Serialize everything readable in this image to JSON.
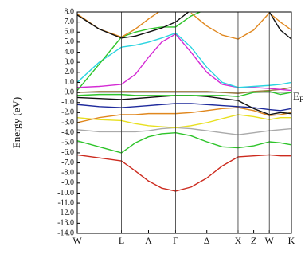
{
  "chart_data": {
    "type": "line",
    "ylabel": "Energy (eV)",
    "fermi_label": {
      "main": "E",
      "sub": "F"
    },
    "fermi_level": 0,
    "fermi_color": "#aaaaaa",
    "xlim": [
      0,
      3.427
    ],
    "ylim": [
      -14,
      8
    ],
    "xticks": [
      {
        "value": 0,
        "label": "W"
      },
      {
        "value": 0.707,
        "label": "L"
      },
      {
        "value": 1.14,
        "label": "Λ"
      },
      {
        "value": 1.573,
        "label": "Γ"
      },
      {
        "value": 2.073,
        "label": "Δ"
      },
      {
        "value": 2.573,
        "label": "X"
      },
      {
        "value": 2.823,
        "label": "Z"
      },
      {
        "value": 3.073,
        "label": "W"
      },
      {
        "value": 3.427,
        "label": "K"
      }
    ],
    "vlines": [
      0,
      0.707,
      1.573,
      2.573,
      3.073,
      3.427
    ],
    "yticks": [
      {
        "value": 8,
        "label": "8.0"
      },
      {
        "value": 7,
        "label": "7.0"
      },
      {
        "value": 6,
        "label": "6.0"
      },
      {
        "value": 5,
        "label": "5.0"
      },
      {
        "value": 4,
        "label": "4.0"
      },
      {
        "value": 3,
        "label": "3.0"
      },
      {
        "value": 2,
        "label": "2.0"
      },
      {
        "value": 1,
        "label": "1.0"
      },
      {
        "value": 0,
        "label": "0.0"
      },
      {
        "value": -1,
        "label": "-1.0"
      },
      {
        "value": -2,
        "label": "-2.0"
      },
      {
        "value": -3,
        "label": "-3.0"
      },
      {
        "value": -4,
        "label": "-4.0"
      },
      {
        "value": -5,
        "label": "-5.0"
      },
      {
        "value": -6,
        "label": "-6.0"
      },
      {
        "value": -7,
        "label": "-7.0"
      },
      {
        "value": -8,
        "label": "-8.0"
      },
      {
        "value": -9,
        "label": "-9.0"
      },
      {
        "value": -10,
        "label": "-10.0"
      },
      {
        "value": -11,
        "label": "-11.0"
      },
      {
        "value": -12,
        "label": "-12.0"
      },
      {
        "value": -13,
        "label": "-13.0"
      },
      {
        "value": -14,
        "label": "-14.0"
      }
    ],
    "x": [
      0,
      0.35,
      0.707,
      0.93,
      1.14,
      1.35,
      1.573,
      1.82,
      2.073,
      2.32,
      2.573,
      2.823,
      3.073,
      3.25,
      3.427
    ],
    "series": [
      {
        "color": "#cc2a1e",
        "values": [
          -6.2,
          -6.5,
          -6.8,
          -7.8,
          -8.8,
          -9.5,
          -9.8,
          -9.4,
          -8.5,
          -7.3,
          -6.4,
          -6.3,
          -6.2,
          -6.3,
          -6.3
        ]
      },
      {
        "color": "#2ec42a",
        "values": [
          -4.8,
          -5.4,
          -6.0,
          -5.0,
          -4.4,
          -4.1,
          -4.0,
          -4.3,
          -4.9,
          -5.4,
          -5.5,
          -5.3,
          -4.9,
          -5.0,
          -5.2
        ]
      },
      {
        "color": "#aaaaaa",
        "values": [
          -3.7,
          -3.9,
          -3.9,
          -3.9,
          -3.8,
          -3.6,
          -3.5,
          -3.6,
          -3.8,
          -4.0,
          -4.2,
          -4.0,
          -3.8,
          -3.7,
          -3.6
        ]
      },
      {
        "color": "#e8e020",
        "values": [
          -2.5,
          -2.7,
          -2.8,
          -3.1,
          -3.3,
          -3.4,
          -3.5,
          -3.3,
          -3.0,
          -2.6,
          -2.2,
          -2.4,
          -2.7,
          -2.5,
          -2.5
        ]
      },
      {
        "color": "#e0871e",
        "values": [
          -3.0,
          -2.5,
          -2.2,
          -2.2,
          -2.1,
          -2.1,
          -2.1,
          -2.0,
          -1.8,
          -1.6,
          -1.5,
          -1.8,
          -2.3,
          -2.2,
          -2.0
        ]
      },
      {
        "color": "#1e2a9c",
        "values": [
          -1.2,
          -1.4,
          -1.5,
          -1.4,
          -1.3,
          -1.2,
          -1.1,
          -1.1,
          -1.2,
          -1.3,
          -1.4,
          -1.5,
          -1.7,
          -1.8,
          -1.6
        ]
      },
      {
        "color": "#111111",
        "values": [
          -0.5,
          -0.6,
          -0.7,
          -0.6,
          -0.5,
          -0.4,
          -0.3,
          -0.3,
          -0.4,
          -0.6,
          -0.8,
          -1.6,
          -2.2,
          -2.0,
          -2.1
        ]
      },
      {
        "color": "#2ec42a",
        "values": [
          -0.3,
          -0.2,
          -0.2,
          -0.3,
          -0.3,
          -0.3,
          -0.3,
          -0.3,
          -0.3,
          -0.3,
          -0.4,
          0.0,
          0.1,
          -0.2,
          0.0
        ]
      },
      {
        "color": "#9c7a3c",
        "values": [
          0.0,
          0.1,
          0.1,
          0.1,
          0.1,
          0.1,
          0.1,
          0.1,
          0.1,
          0.0,
          -0.1,
          0.1,
          0.2,
          0.3,
          0.5
        ]
      },
      {
        "color": "#d42ad4",
        "values": [
          0.5,
          0.6,
          0.8,
          1.8,
          3.5,
          5.0,
          5.8,
          4.0,
          2.0,
          0.8,
          0.5,
          0.5,
          0.4,
          0.3,
          0.2
        ]
      },
      {
        "color": "#2ad4e0",
        "values": [
          1.0,
          3.0,
          4.5,
          4.7,
          5.0,
          5.4,
          5.9,
          4.5,
          2.5,
          1.0,
          0.5,
          0.6,
          0.7,
          0.8,
          1.0
        ]
      },
      {
        "color": "#2ec42a",
        "values": [
          0.2,
          2.8,
          5.5,
          6.0,
          6.3,
          6.5,
          6.5,
          7.6,
          8.3,
          null,
          null,
          null,
          null,
          null,
          null
        ]
      },
      {
        "color": "#e0871e",
        "values": [
          7.8,
          6.3,
          5.5,
          6.3,
          7.3,
          8.2,
          null,
          7.9,
          6.6,
          5.7,
          5.3,
          6.2,
          7.9,
          7.0,
          6.2
        ]
      },
      {
        "color": "#111111",
        "values": [
          7.7,
          6.3,
          5.4,
          5.6,
          6.0,
          6.4,
          7.0,
          8.2,
          null,
          null,
          null,
          null,
          8.0,
          6.2,
          5.3
        ]
      }
    ]
  }
}
